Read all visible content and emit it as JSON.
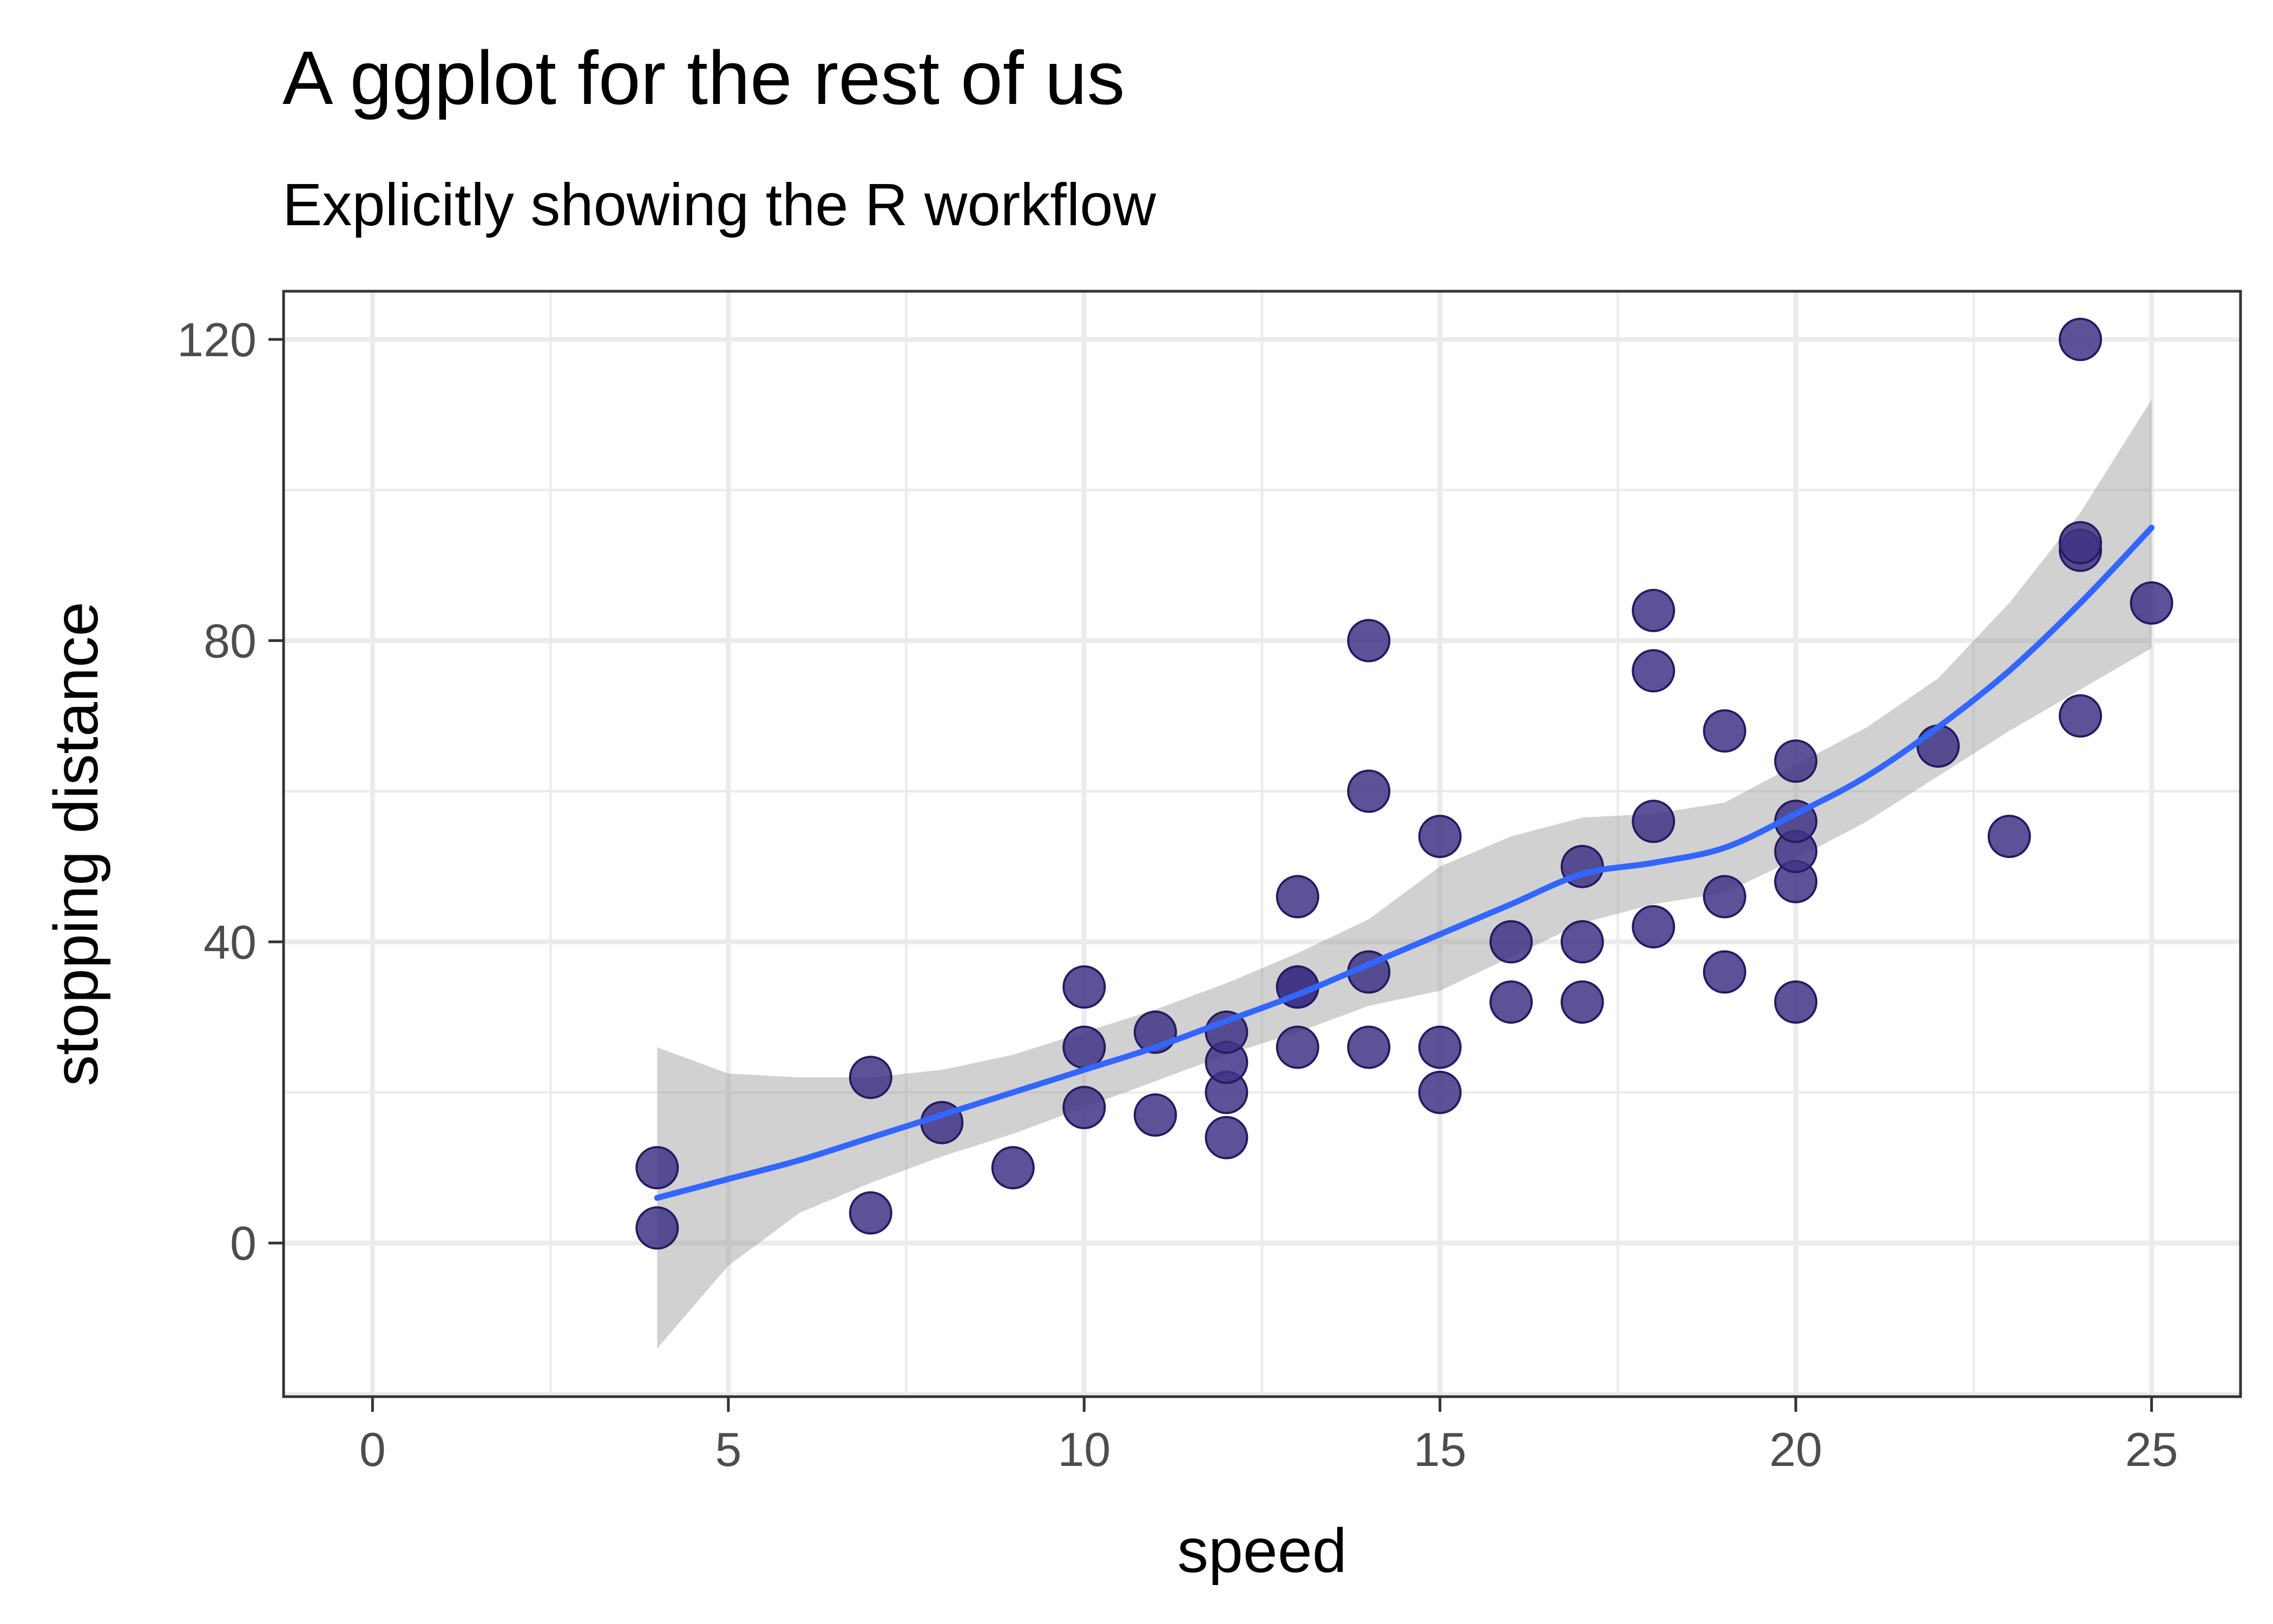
{
  "chart_data": {
    "type": "scatter",
    "title": "A ggplot for the rest of us",
    "subtitle": "Explicitly showing the R workflow",
    "xlabel": "speed",
    "ylabel": "stopping distance",
    "xlim": [
      -1.25,
      26.25
    ],
    "ylim": [
      -20.4,
      126.4
    ],
    "x_ticks": [
      0,
      5,
      10,
      15,
      20,
      25
    ],
    "y_ticks": [
      0,
      40,
      80,
      120
    ],
    "grid": true,
    "legend": "none",
    "point_color": "#3f3485",
    "smooth_color": "#3366ff",
    "ribbon_color": "#999999",
    "points": [
      {
        "x": 4,
        "y": 2
      },
      {
        "x": 4,
        "y": 10
      },
      {
        "x": 7,
        "y": 4
      },
      {
        "x": 7,
        "y": 22
      },
      {
        "x": 8,
        "y": 16
      },
      {
        "x": 9,
        "y": 10
      },
      {
        "x": 10,
        "y": 18
      },
      {
        "x": 10,
        "y": 26
      },
      {
        "x": 10,
        "y": 34
      },
      {
        "x": 11,
        "y": 17
      },
      {
        "x": 11,
        "y": 28
      },
      {
        "x": 12,
        "y": 14
      },
      {
        "x": 12,
        "y": 20
      },
      {
        "x": 12,
        "y": 24
      },
      {
        "x": 12,
        "y": 28
      },
      {
        "x": 13,
        "y": 26
      },
      {
        "x": 13,
        "y": 34
      },
      {
        "x": 13,
        "y": 34
      },
      {
        "x": 13,
        "y": 46
      },
      {
        "x": 14,
        "y": 26
      },
      {
        "x": 14,
        "y": 36
      },
      {
        "x": 14,
        "y": 60
      },
      {
        "x": 14,
        "y": 80
      },
      {
        "x": 15,
        "y": 20
      },
      {
        "x": 15,
        "y": 26
      },
      {
        "x": 15,
        "y": 54
      },
      {
        "x": 16,
        "y": 32
      },
      {
        "x": 16,
        "y": 40
      },
      {
        "x": 17,
        "y": 32
      },
      {
        "x": 17,
        "y": 40
      },
      {
        "x": 17,
        "y": 50
      },
      {
        "x": 18,
        "y": 42
      },
      {
        "x": 18,
        "y": 56
      },
      {
        "x": 18,
        "y": 76
      },
      {
        "x": 18,
        "y": 84
      },
      {
        "x": 19,
        "y": 36
      },
      {
        "x": 19,
        "y": 46
      },
      {
        "x": 19,
        "y": 68
      },
      {
        "x": 20,
        "y": 32
      },
      {
        "x": 20,
        "y": 48
      },
      {
        "x": 20,
        "y": 52
      },
      {
        "x": 20,
        "y": 56
      },
      {
        "x": 20,
        "y": 64
      },
      {
        "x": 22,
        "y": 66
      },
      {
        "x": 23,
        "y": 54
      },
      {
        "x": 24,
        "y": 70
      },
      {
        "x": 24,
        "y": 92
      },
      {
        "x": 24,
        "y": 93
      },
      {
        "x": 24,
        "y": 120
      },
      {
        "x": 25,
        "y": 85
      }
    ],
    "smooth": [
      {
        "x": 4,
        "y": 6,
        "lo": -14,
        "hi": 26
      },
      {
        "x": 5,
        "y": 8.5,
        "lo": -3,
        "hi": 22.5
      },
      {
        "x": 6,
        "y": 11,
        "lo": 4,
        "hi": 22
      },
      {
        "x": 7,
        "y": 14,
        "lo": 8,
        "hi": 22
      },
      {
        "x": 8,
        "y": 17,
        "lo": 11.5,
        "hi": 23
      },
      {
        "x": 9,
        "y": 20,
        "lo": 14.5,
        "hi": 25
      },
      {
        "x": 10,
        "y": 23,
        "lo": 18,
        "hi": 28
      },
      {
        "x": 11,
        "y": 26,
        "lo": 21.5,
        "hi": 31
      },
      {
        "x": 12,
        "y": 29.5,
        "lo": 25,
        "hi": 34.5
      },
      {
        "x": 13,
        "y": 33,
        "lo": 28,
        "hi": 38.5
      },
      {
        "x": 14,
        "y": 37,
        "lo": 31.5,
        "hi": 43
      },
      {
        "x": 15,
        "y": 41,
        "lo": 33.5,
        "hi": 50
      },
      {
        "x": 16,
        "y": 45,
        "lo": 38,
        "hi": 54
      },
      {
        "x": 17,
        "y": 49,
        "lo": 42.5,
        "hi": 56.5
      },
      {
        "x": 18,
        "y": 50.5,
        "lo": 45,
        "hi": 57
      },
      {
        "x": 19,
        "y": 52.5,
        "lo": 46.5,
        "hi": 58.5
      },
      {
        "x": 20,
        "y": 57,
        "lo": 51,
        "hi": 63.5
      },
      {
        "x": 21,
        "y": 62,
        "lo": 56,
        "hi": 68.5
      },
      {
        "x": 22,
        "y": 68.5,
        "lo": 62,
        "hi": 75
      },
      {
        "x": 23,
        "y": 76,
        "lo": 68,
        "hi": 85
      },
      {
        "x": 24,
        "y": 85,
        "lo": 73.5,
        "hi": 97
      },
      {
        "x": 25,
        "y": 95,
        "lo": 79,
        "hi": 112
      }
    ]
  }
}
